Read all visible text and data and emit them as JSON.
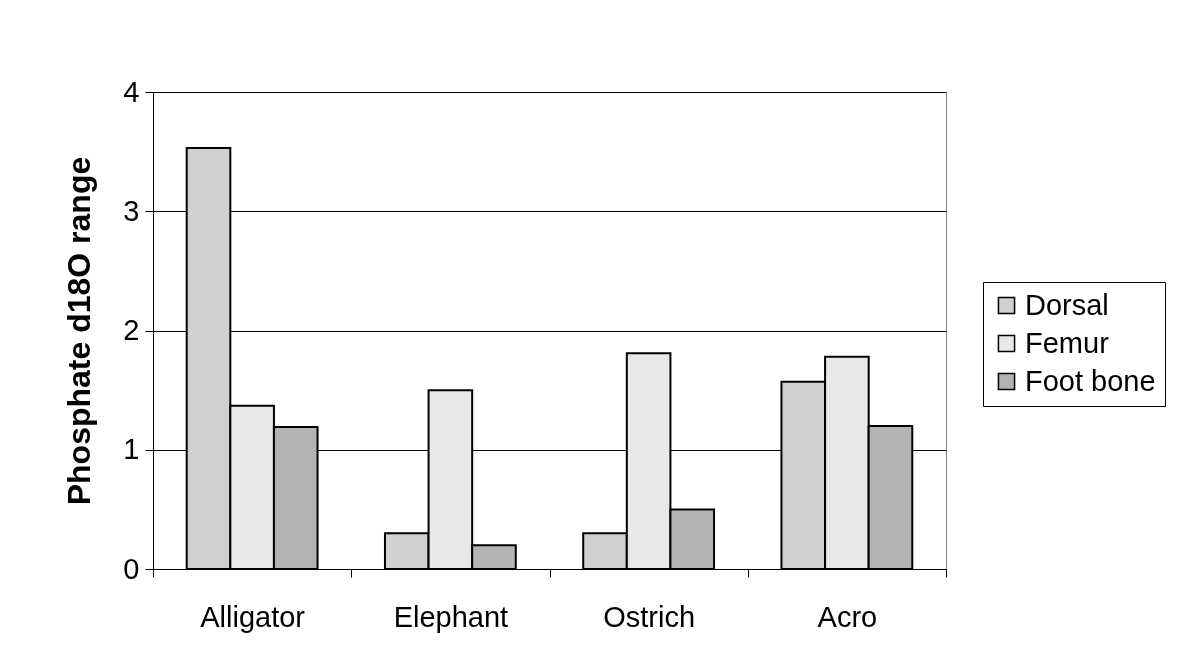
{
  "chart_data": {
    "type": "bar",
    "ylabel": "Phosphate d18O range",
    "categories": [
      "Alligator",
      "Elephant",
      "Ostrich",
      "Acro"
    ],
    "series": [
      {
        "name": "Dorsal",
        "color": "#d0d0d0",
        "values": [
          3.53,
          0.3,
          0.3,
          1.57
        ]
      },
      {
        "name": "Femur",
        "color": "#e8e8e8",
        "values": [
          1.37,
          1.5,
          1.81,
          1.78
        ]
      },
      {
        "name": "Foot bone",
        "color": "#b4b4b4",
        "values": [
          1.19,
          0.2,
          0.5,
          1.2
        ]
      }
    ],
    "ylim": [
      0,
      4
    ],
    "yticks": [
      0,
      1,
      2,
      3,
      4
    ],
    "grid": "y",
    "legend": "right"
  }
}
